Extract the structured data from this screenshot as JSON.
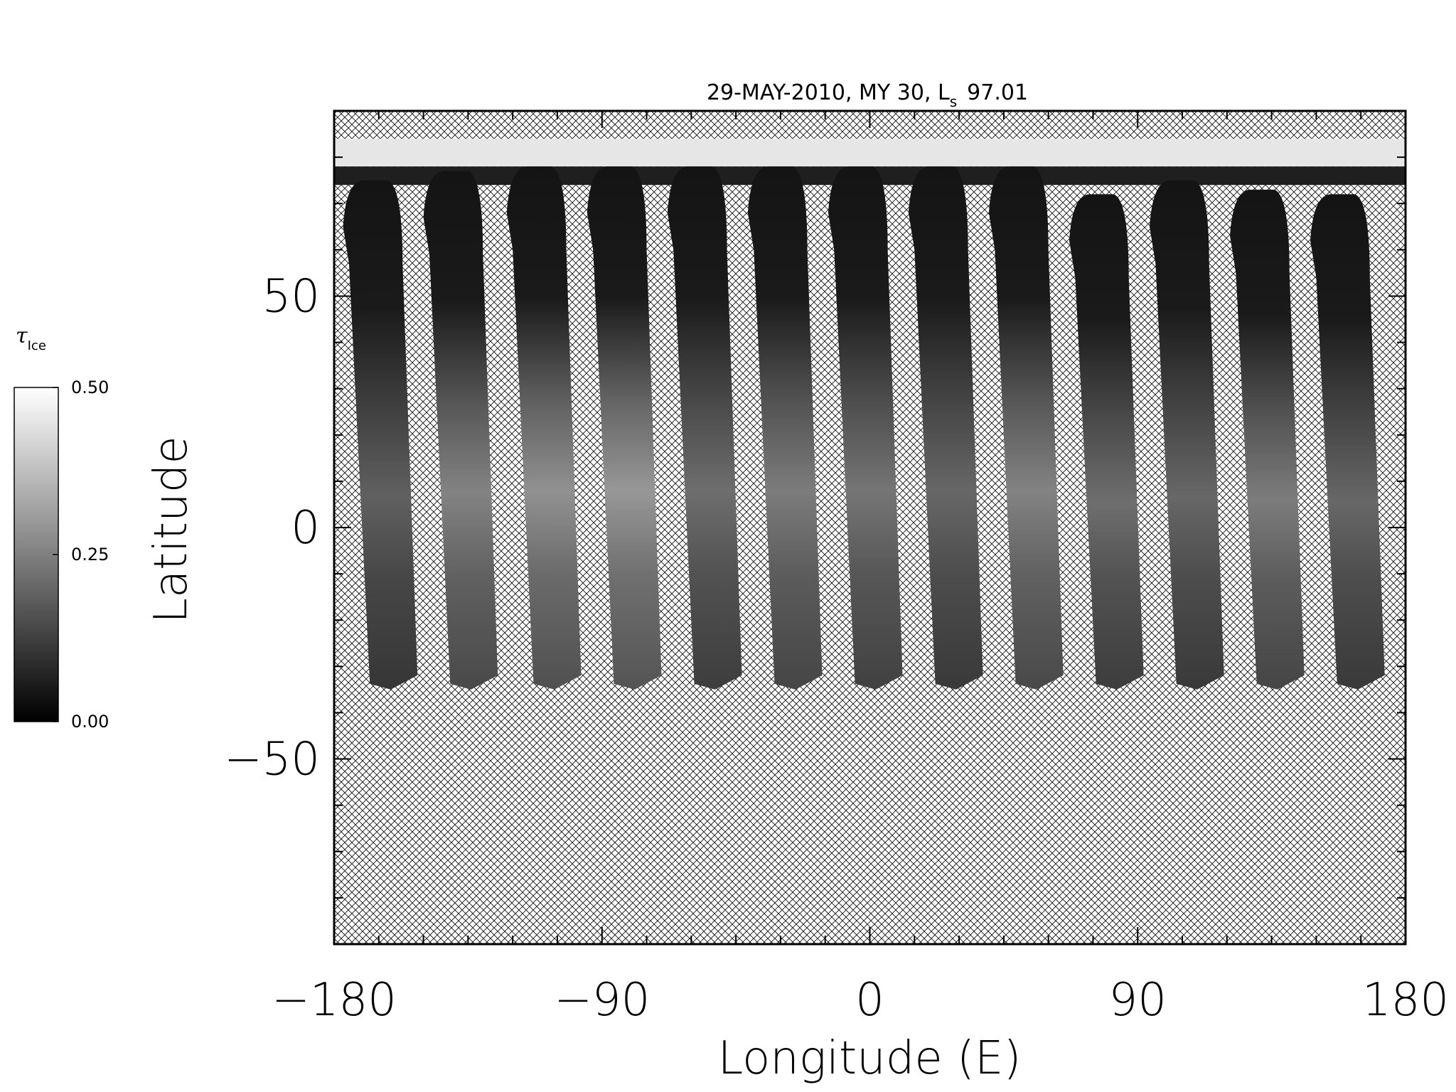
{
  "chart_data": {
    "type": "heatmap",
    "title": "29-MAY-2010, MY 30,  L",
    "title_subscript": "s",
    "title_value": "97.01",
    "xlabel": "Longitude (E)",
    "ylabel": "Latitude",
    "xlim": [
      -180,
      180
    ],
    "ylim": [
      -90,
      90
    ],
    "x_ticks": [
      -180,
      -90,
      0,
      90,
      180
    ],
    "x_tick_labels": [
      "−180",
      "−90",
      "0",
      "90",
      "180"
    ],
    "y_ticks": [
      -50,
      0,
      50
    ],
    "y_tick_labels": [
      "−50",
      "0",
      "50"
    ],
    "grid": false,
    "colormap": "grayscale",
    "colorbar": {
      "label": "τ",
      "label_subscript": "Ice",
      "min": 0.0,
      "max": 0.5,
      "ticks": [
        0.0,
        0.25,
        0.5
      ],
      "tick_labels": [
        "0.00",
        "0.25",
        "0.50"
      ],
      "placement": "left"
    },
    "no_data_fill": "crosshatch",
    "swaths": [
      {
        "lon_north": -173,
        "lon_south": -160,
        "lat_top": 75,
        "lat_bottom": -35,
        "mean_tau": 0.14
      },
      {
        "lon_north": -146,
        "lon_south": -133,
        "lat_top": 77,
        "lat_bottom": -35,
        "mean_tau": 0.19
      },
      {
        "lon_north": -118,
        "lon_south": -105,
        "lat_top": 78,
        "lat_bottom": -35,
        "mean_tau": 0.21
      },
      {
        "lon_north": -91,
        "lon_south": -78,
        "lat_top": 78,
        "lat_bottom": -35,
        "mean_tau": 0.22
      },
      {
        "lon_north": -64,
        "lon_south": -51,
        "lat_top": 78,
        "lat_bottom": -35,
        "mean_tau": 0.16
      },
      {
        "lon_north": -37,
        "lon_south": -24,
        "lat_top": 78,
        "lat_bottom": -35,
        "mean_tau": 0.18
      },
      {
        "lon_north": -10,
        "lon_south": 3,
        "lat_top": 78,
        "lat_bottom": -35,
        "mean_tau": 0.17
      },
      {
        "lon_north": 17,
        "lon_south": 30,
        "lat_top": 78,
        "lat_bottom": -35,
        "mean_tau": 0.15
      },
      {
        "lon_north": 44,
        "lon_south": 57,
        "lat_top": 78,
        "lat_bottom": -35,
        "mean_tau": 0.19
      },
      {
        "lon_north": 71,
        "lon_south": 84,
        "lat_top": 72,
        "lat_bottom": -35,
        "mean_tau": 0.16
      },
      {
        "lon_north": 98,
        "lon_south": 111,
        "lat_top": 75,
        "lat_bottom": -35,
        "mean_tau": 0.15
      },
      {
        "lon_north": 125,
        "lon_south": 138,
        "lat_top": 73,
        "lat_bottom": -35,
        "mean_tau": 0.18
      },
      {
        "lon_north": 152,
        "lon_south": 165,
        "lat_top": 72,
        "lat_bottom": -35,
        "mean_tau": 0.15
      }
    ],
    "polar_cap": {
      "lat_min": 78,
      "lat_max": 84,
      "tau": 0.45
    }
  }
}
